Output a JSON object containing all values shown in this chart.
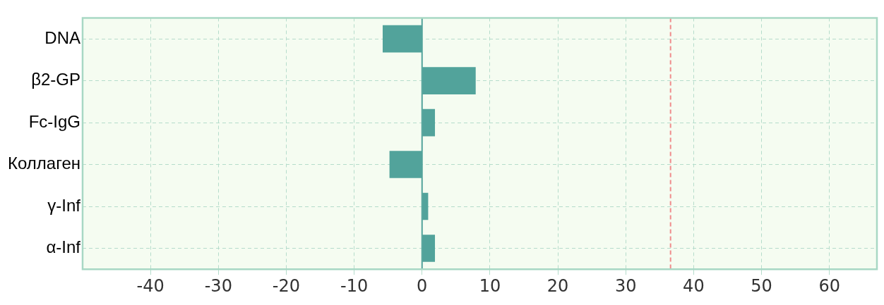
{
  "chart_data": {
    "type": "bar",
    "orientation": "horizontal",
    "categories": [
      "DNA",
      "β2-GP",
      "Fc-IgG",
      "Коллаген",
      "γ-Inf",
      "α-Inf"
    ],
    "values": [
      -5.8,
      7.9,
      1.9,
      -4.8,
      0.9,
      1.9
    ],
    "color": "#52a39b",
    "xlim": [
      -50,
      67
    ],
    "xticks": [
      -40,
      -30,
      -20,
      -10,
      0,
      10,
      20,
      30,
      40,
      50,
      60
    ],
    "ref_lines": [
      {
        "axis": "x",
        "value": 0,
        "color": "#52a39b",
        "line_style": "solid"
      },
      {
        "axis": "x",
        "value": 36.6,
        "color": "#f08c8c",
        "line_style": "dashed"
      }
    ],
    "grid": true,
    "legend": false
  }
}
